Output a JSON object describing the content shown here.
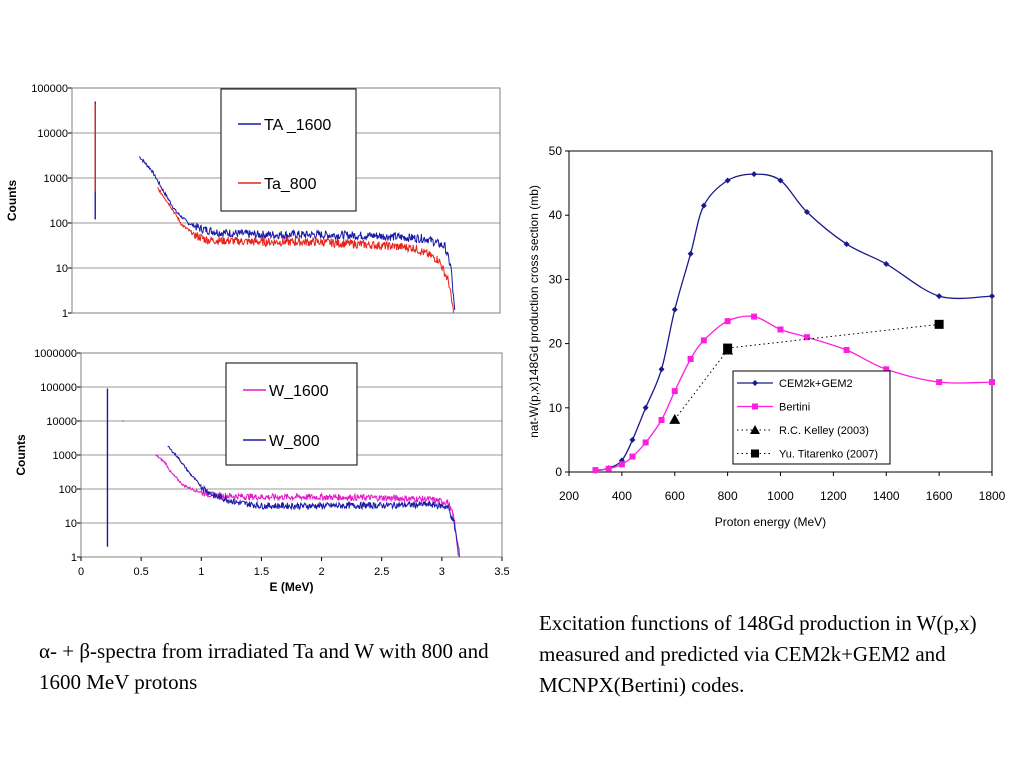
{
  "captions": {
    "left": "α- +  β-spectra from irradiated Ta and W with 800 and 1600 MeV protons",
    "right": "Excitation functions of 148Gd production in W(p,x) measured and predicted via CEM2k+GEM2 and  MCNPX(Bertini) codes."
  },
  "chart_data": [
    {
      "type": "line",
      "scale": "log",
      "ylabel": "Counts",
      "xlabel": "",
      "ylim": [
        1,
        100000
      ],
      "xlim": [
        0,
        3.5
      ],
      "y_tick_labels": [
        "1",
        "10",
        "100",
        "1000",
        "10000",
        "100000"
      ],
      "legend_position": "top-right",
      "series": [
        {
          "name": "TA _1600",
          "color": "#1a1aa8",
          "spike": {
            "x": 0.19,
            "top": 50000,
            "bottom": 120
          },
          "plateau": 52,
          "points": [
            [
              0.55,
              3000
            ],
            [
              0.65,
              1500
            ],
            [
              0.75,
              500
            ],
            [
              0.85,
              180
            ],
            [
              0.95,
              100
            ],
            [
              1.05,
              75
            ],
            [
              1.2,
              62
            ],
            [
              1.5,
              55
            ],
            [
              2.0,
              55
            ],
            [
              2.5,
              52
            ],
            [
              2.9,
              45
            ],
            [
              3.05,
              30
            ],
            [
              3.1,
              10
            ],
            [
              3.13,
              1
            ]
          ]
        },
        {
          "name": "Ta_800",
          "color": "#e8231b",
          "spike": {
            "x": 0.19,
            "top": 45000,
            "bottom": 500
          },
          "plateau": 35,
          "points": [
            [
              0.7,
              600
            ],
            [
              0.8,
              250
            ],
            [
              0.9,
              90
            ],
            [
              1.0,
              55
            ],
            [
              1.1,
              42
            ],
            [
              1.5,
              38
            ],
            [
              2.0,
              38
            ],
            [
              2.5,
              32
            ],
            [
              2.8,
              28
            ],
            [
              3.0,
              15
            ],
            [
              3.08,
              5
            ],
            [
              3.12,
              1
            ]
          ]
        }
      ]
    },
    {
      "type": "line",
      "scale": "log",
      "ylabel": "Counts",
      "xlabel": "E (MeV)",
      "ylim": [
        1,
        1000000
      ],
      "xlim": [
        0,
        3.5
      ],
      "x_tick_labels": [
        "0",
        "0.5",
        "1",
        "1.5",
        "2",
        "2.5",
        "3",
        "3.5"
      ],
      "y_tick_labels": [
        "1",
        "10",
        "100",
        "1000",
        "10000",
        "100000",
        "1000000"
      ],
      "legend_position": "top-right",
      "series": [
        {
          "name": "W_1600",
          "color": "#e619c8",
          "stray": {
            "x": 0.35,
            "y": 10000
          },
          "plateau": 55,
          "points": [
            [
              0.62,
              1000
            ],
            [
              0.7,
              600
            ],
            [
              0.75,
              300
            ],
            [
              0.85,
              130
            ],
            [
              0.95,
              90
            ],
            [
              1.1,
              65
            ],
            [
              1.5,
              58
            ],
            [
              2.0,
              58
            ],
            [
              2.5,
              55
            ],
            [
              2.9,
              50
            ],
            [
              3.05,
              40
            ],
            [
              3.1,
              15
            ],
            [
              3.14,
              1
            ]
          ]
        },
        {
          "name": "W_800",
          "color": "#1a1aa8",
          "spike": {
            "x": 0.22,
            "top": 90000,
            "bottom": 2
          },
          "plateau": 32,
          "points": [
            [
              0.72,
              1800
            ],
            [
              0.8,
              900
            ],
            [
              0.9,
              300
            ],
            [
              1.0,
              120
            ],
            [
              1.1,
              65
            ],
            [
              1.3,
              40
            ],
            [
              1.5,
              32
            ],
            [
              2.0,
              32
            ],
            [
              2.5,
              33
            ],
            [
              2.9,
              35
            ],
            [
              3.05,
              30
            ],
            [
              3.1,
              10
            ],
            [
              3.15,
              1
            ]
          ]
        }
      ]
    },
    {
      "type": "line",
      "ylabel": "nat-W(p,x)148Gd production cross section (mb)",
      "xlabel": "Proton energy (MeV)",
      "xlim": [
        200,
        1800
      ],
      "ylim": [
        0,
        50
      ],
      "x_tick_labels": [
        "200",
        "400",
        "600",
        "800",
        "1000",
        "1200",
        "1400",
        "1600",
        "1800"
      ],
      "y_tick_labels": [
        "0",
        "10",
        "20",
        "30",
        "40",
        "50"
      ],
      "legend_position": "bottom-right",
      "series": [
        {
          "name": "CEM2k+GEM2",
          "color": "#1a1a8c",
          "marker": "diamond",
          "style": "solid",
          "x": [
            300,
            350,
            400,
            440,
            490,
            550,
            600,
            660,
            710,
            800,
            900,
            1000,
            1100,
            1250,
            1400,
            1600,
            1800
          ],
          "y": [
            0.2,
            0.6,
            1.8,
            5.0,
            10.0,
            16.0,
            25.3,
            34.0,
            41.5,
            45.4,
            46.4,
            45.4,
            40.5,
            35.5,
            32.4,
            27.4,
            27.4
          ]
        },
        {
          "name": "Bertini",
          "color": "#ff1ee0",
          "marker": "square",
          "style": "solid",
          "x": [
            300,
            350,
            400,
            440,
            490,
            550,
            600,
            660,
            710,
            800,
            900,
            1000,
            1100,
            1250,
            1400,
            1600,
            1800
          ],
          "y": [
            0.3,
            0.5,
            1.2,
            2.4,
            4.6,
            8.1,
            12.6,
            17.6,
            20.5,
            23.5,
            24.2,
            22.2,
            21.0,
            19.0,
            16.0,
            14.0,
            14.0
          ]
        },
        {
          "name": "R.C. Kelley (2003)",
          "color": "#000000",
          "marker": "triangle",
          "style": "dotted",
          "x": [
            600,
            800
          ],
          "y": [
            8.2,
            19.0
          ]
        },
        {
          "name": "Yu. Titarenko (2007)",
          "color": "#000000",
          "marker": "square",
          "style": "dotted",
          "x": [
            800,
            1600
          ],
          "y": [
            19.3,
            23.0
          ]
        }
      ]
    }
  ]
}
